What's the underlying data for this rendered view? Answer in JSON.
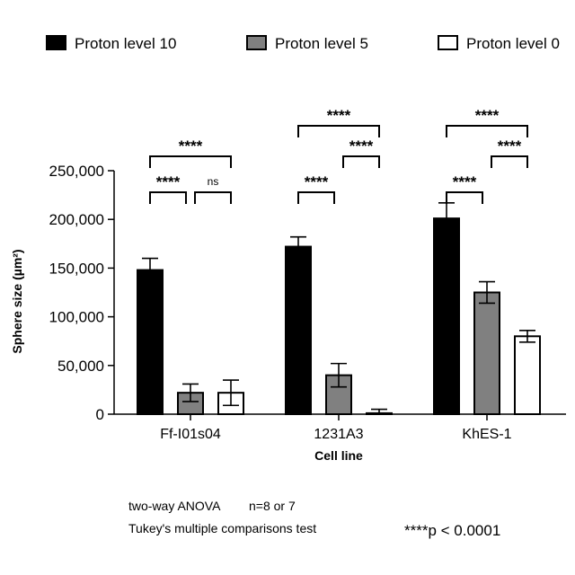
{
  "chart_data": {
    "type": "bar",
    "categories": [
      "Ff-I01s04",
      "1231A3",
      "KhES-1"
    ],
    "series": [
      {
        "name": "Proton level 10",
        "color": "#000000",
        "values": [
          148000,
          172000,
          201000
        ],
        "errors": [
          12000,
          10000,
          16000
        ]
      },
      {
        "name": "Proton level 5",
        "color": "#808080",
        "values": [
          22000,
          40000,
          125000
        ],
        "errors": [
          9000,
          12000,
          11000
        ]
      },
      {
        "name": "Proton level 0",
        "color": "#ffffff",
        "values": [
          22000,
          1000,
          80000
        ],
        "errors": [
          13000,
          4000,
          6000
        ]
      }
    ],
    "xlabel": "Cell line",
    "ylabel": "Sphere size (µm²)",
    "ylim": [
      0,
      250000
    ],
    "yticks": [
      0,
      50000,
      100000,
      150000,
      200000,
      250000
    ],
    "ytick_labels": [
      "0",
      "50,000",
      "100,000",
      "150,000",
      "200,000",
      "250,000"
    ],
    "legend_position": "top",
    "significance": [
      {
        "group": 0,
        "from": 0,
        "to": 1,
        "label": "****",
        "level": 1
      },
      {
        "group": 0,
        "from": 1,
        "to": 2,
        "label": "ns",
        "level": 1
      },
      {
        "group": 0,
        "from": 0,
        "to": 2,
        "label": "****",
        "level": 2
      },
      {
        "group": 1,
        "from": 0,
        "to": 1,
        "label": "****",
        "level": 1
      },
      {
        "group": 1,
        "from": 1,
        "to": 2,
        "label": "****",
        "level": 2
      },
      {
        "group": 1,
        "from": 0,
        "to": 2,
        "label": "****",
        "level": 3
      },
      {
        "group": 2,
        "from": 0,
        "to": 1,
        "label": "****",
        "level": 1
      },
      {
        "group": 2,
        "from": 1,
        "to": 2,
        "label": "****",
        "level": 2
      },
      {
        "group": 2,
        "from": 0,
        "to": 2,
        "label": "****",
        "level": 3
      }
    ]
  },
  "notes": {
    "anova": "two-way ANOVA",
    "n": "n=8 or 7",
    "tukey": "Tukey's multiple comparisons test",
    "pvalue": "****p < 0.0001"
  }
}
